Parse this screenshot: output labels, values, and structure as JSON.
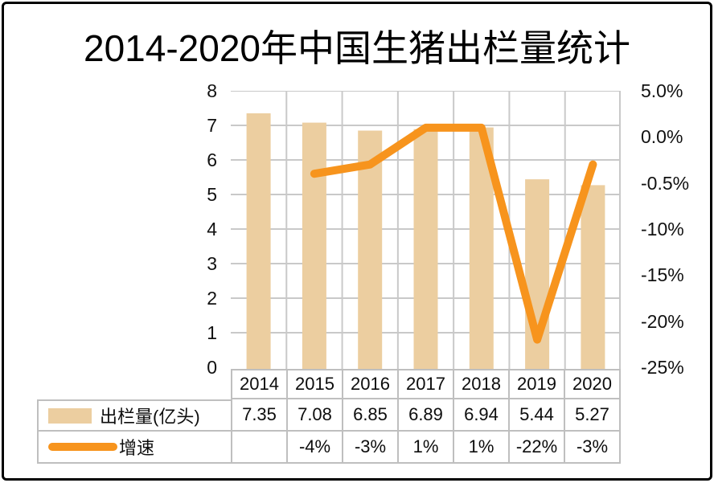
{
  "title": "2014-2020年中国生猪出栏量统计",
  "colors": {
    "bar": "#ECCEA0",
    "line": "#F7941D",
    "grid": "#C9C9C9",
    "table_border": "#BFBFBF"
  },
  "chart_data": {
    "type": "bar+line combo",
    "title": "2014-2020年中国生猪出栏量统计",
    "categories": [
      "2014",
      "2015",
      "2016",
      "2017",
      "2018",
      "2019",
      "2020"
    ],
    "series": [
      {
        "name": "出栏量(亿头)",
        "type": "bar",
        "axis": "left",
        "values": [
          7.35,
          7.08,
          6.85,
          6.89,
          6.94,
          5.44,
          5.27
        ]
      },
      {
        "name": "增速",
        "type": "line",
        "axis": "right",
        "values": [
          null,
          -4,
          -3,
          1,
          1,
          -22,
          -3
        ],
        "unit": "%"
      }
    ],
    "left_axis": {
      "min": 0,
      "max": 8,
      "ticks": [
        "8",
        "7",
        "6",
        "5",
        "4",
        "3",
        "2",
        "1",
        "0"
      ]
    },
    "right_axis": {
      "min": -25,
      "max": 5,
      "ticks": [
        "5.0%",
        "0.0%",
        "-0.5%",
        "-10%",
        "-15%",
        "-20%",
        "-25%"
      ]
    },
    "grid": true,
    "legend_position": "bottom-table"
  },
  "table": {
    "years": [
      "2014",
      "2015",
      "2016",
      "2017",
      "2018",
      "2019",
      "2020"
    ],
    "rows": [
      {
        "label": "出栏量(亿头)",
        "swatch": "bar",
        "values": [
          "7.35",
          "7.08",
          "6.85",
          "6.89",
          "6.94",
          "5.44",
          "5.27"
        ]
      },
      {
        "label": "增速",
        "swatch": "line",
        "values": [
          "",
          "-4%",
          "-3%",
          "1%",
          "1%",
          "-22%",
          "-3%"
        ]
      }
    ]
  }
}
